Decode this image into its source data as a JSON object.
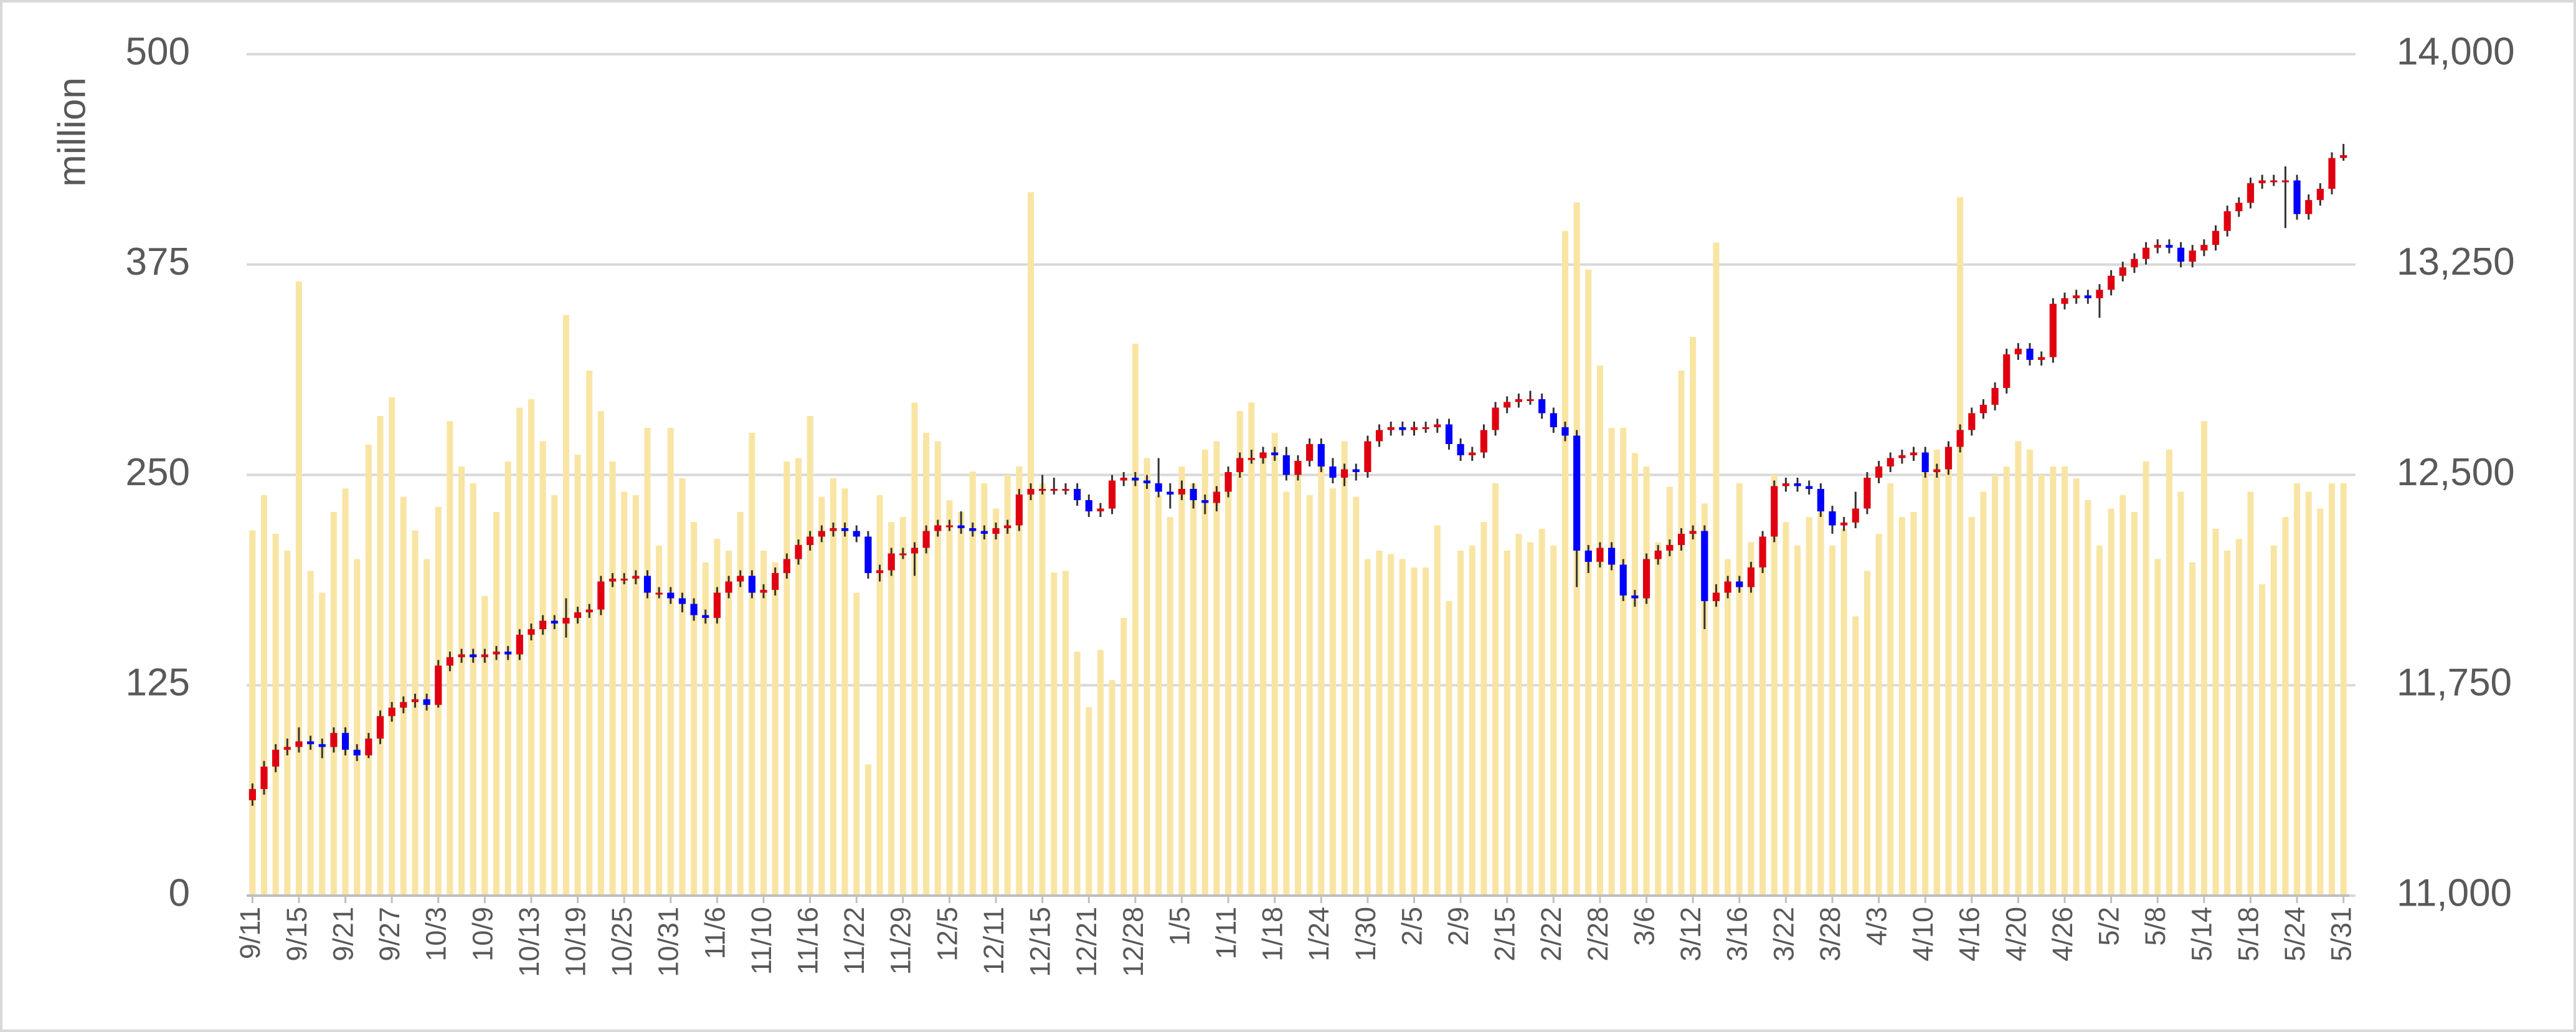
{
  "chart_data": {
    "type": "candlestick",
    "y_label": "million",
    "categories": [
      "9/11",
      null,
      null,
      null,
      "9/15",
      null,
      null,
      null,
      "9/21",
      null,
      null,
      null,
      "9/27",
      null,
      null,
      null,
      "10/3",
      null,
      null,
      null,
      "10/9",
      null,
      null,
      null,
      "10/13",
      null,
      null,
      null,
      "10/19",
      null,
      null,
      null,
      "10/25",
      null,
      null,
      null,
      "10/31",
      null,
      null,
      null,
      "11/6",
      null,
      null,
      null,
      "11/10",
      null,
      null,
      null,
      "11/16",
      null,
      null,
      null,
      "11/22",
      null,
      null,
      null,
      "11/29",
      null,
      null,
      null,
      "12/5",
      null,
      null,
      null,
      "12/11",
      null,
      null,
      null,
      "12/15",
      null,
      null,
      null,
      "12/21",
      null,
      null,
      null,
      "12/28",
      null,
      null,
      null,
      "1/5",
      null,
      null,
      null,
      "1/11",
      null,
      null,
      null,
      "1/18",
      null,
      null,
      null,
      "1/24",
      null,
      null,
      null,
      "1/30",
      null,
      null,
      null,
      "2/5",
      null,
      null,
      null,
      "2/9",
      null,
      null,
      null,
      "2/15",
      null,
      null,
      null,
      "2/22",
      null,
      null,
      null,
      "2/28",
      null,
      null,
      null,
      "3/6",
      null,
      null,
      null,
      "3/12",
      null,
      null,
      null,
      "3/16",
      null,
      null,
      null,
      "3/22",
      null,
      null,
      null,
      "3/28",
      null,
      null,
      null,
      "4/3",
      null,
      null,
      null,
      "4/10",
      null,
      null,
      null,
      "4/16",
      null,
      null,
      null,
      "4/20",
      null,
      null,
      null,
      "4/26",
      null,
      null,
      null,
      "5/2",
      null,
      null,
      null,
      "5/8",
      null,
      null,
      null,
      "5/14",
      null,
      null,
      null,
      "5/18",
      null,
      null,
      null,
      "5/24",
      null,
      null,
      null,
      "5/31"
    ],
    "volume": [
      217,
      238,
      215,
      205,
      365,
      193,
      180,
      228,
      242,
      200,
      268,
      285,
      296,
      237,
      217,
      200,
      231,
      282,
      255,
      245,
      178,
      228,
      258,
      290,
      295,
      270,
      238,
      345,
      262,
      312,
      288,
      258,
      240,
      238,
      278,
      208,
      278,
      248,
      222,
      198,
      212,
      205,
      228,
      275,
      205,
      198,
      258,
      260,
      285,
      237,
      248,
      242,
      180,
      78,
      238,
      222,
      225,
      293,
      275,
      270,
      235,
      228,
      252,
      245,
      230,
      250,
      255,
      418,
      245,
      192,
      193,
      145,
      112,
      146,
      128,
      165,
      328,
      260,
      238,
      225,
      255,
      245,
      265,
      270,
      248,
      288,
      293,
      262,
      275,
      240,
      250,
      238,
      255,
      242,
      270,
      237,
      200,
      205,
      203,
      200,
      195,
      195,
      220,
      175,
      205,
      208,
      222,
      245,
      205,
      215,
      210,
      218,
      208,
      395,
      412,
      372,
      315,
      278,
      278,
      263,
      255,
      210,
      243,
      312,
      332,
      233,
      388,
      200,
      245,
      210,
      213,
      250,
      222,
      208,
      225,
      240,
      208,
      218,
      166,
      193,
      215,
      245,
      225,
      228,
      260,
      265,
      265,
      415,
      225,
      240,
      250,
      255,
      270,
      265,
      250,
      255,
      255,
      248,
      235,
      208,
      230,
      238,
      228,
      258,
      200,
      265,
      240,
      198,
      282,
      218,
      205,
      212,
      240,
      185,
      208,
      225,
      245,
      240,
      230,
      245,
      245
    ],
    "open": [
      11340,
      11380,
      11460,
      11520,
      11530,
      11550,
      11540,
      11530,
      11580,
      11520,
      11500,
      11560,
      11640,
      11670,
      11690,
      11700,
      11680,
      11820,
      11850,
      11860,
      11850,
      11860,
      11870,
      11860,
      11930,
      11950,
      11980,
      11970,
      11990,
      12010,
      12020,
      12120,
      12130,
      12130,
      12140,
      12080,
      12080,
      12060,
      12040,
      12000,
      11990,
      12080,
      12120,
      12140,
      12080,
      12090,
      12150,
      12200,
      12250,
      12280,
      12300,
      12310,
      12300,
      12280,
      12150,
      12160,
      12220,
      12220,
      12240,
      12300,
      12320,
      12320,
      12310,
      12300,
      12290,
      12310,
      12320,
      12430,
      12450,
      12450,
      12450,
      12450,
      12410,
      12370,
      12380,
      12480,
      12490,
      12480,
      12470,
      12440,
      12430,
      12450,
      12410,
      12400,
      12440,
      12510,
      12560,
      12560,
      12580,
      12570,
      12500,
      12550,
      12610,
      12530,
      12490,
      12520,
      12510,
      12620,
      12660,
      12670,
      12660,
      12670,
      12670,
      12680,
      12610,
      12570,
      12580,
      12660,
      12740,
      12760,
      12770,
      12770,
      12720,
      12670,
      12640,
      12230,
      12190,
      12240,
      12180,
      12070,
      12060,
      12200,
      12230,
      12250,
      12290,
      12300,
      12050,
      12080,
      12120,
      12100,
      12170,
      12280,
      12460,
      12470,
      12460,
      12450,
      12370,
      12320,
      12330,
      12380,
      12490,
      12530,
      12560,
      12570,
      12580,
      12510,
      12520,
      12600,
      12660,
      12720,
      12750,
      12810,
      12930,
      12950,
      12910,
      12920,
      13110,
      13130,
      13140,
      13130,
      13160,
      13210,
      13240,
      13270,
      13310,
      13320,
      13310,
      13260,
      13300,
      13320,
      13370,
      13440,
      13470,
      13540,
      13550,
      13550,
      13550,
      13430,
      13480,
      13520,
      13630
    ],
    "high": [
      11400,
      11480,
      11540,
      11560,
      11600,
      11570,
      11560,
      11600,
      11600,
      11540,
      11580,
      11660,
      11690,
      11710,
      11720,
      11720,
      11840,
      11870,
      11880,
      11880,
      11880,
      11890,
      11890,
      11950,
      11970,
      12000,
      12000,
      12060,
      12030,
      12040,
      12140,
      12150,
      12150,
      12160,
      12160,
      12100,
      12100,
      12080,
      12060,
      12020,
      12100,
      12140,
      12160,
      12160,
      12110,
      12170,
      12220,
      12270,
      12300,
      12320,
      12330,
      12330,
      12320,
      12300,
      12180,
      12240,
      12240,
      12260,
      12320,
      12340,
      12340,
      12370,
      12330,
      12320,
      12330,
      12340,
      12450,
      12470,
      12500,
      12490,
      12470,
      12470,
      12430,
      12400,
      12500,
      12510,
      12510,
      12500,
      12560,
      12470,
      12480,
      12470,
      12430,
      12460,
      12530,
      12580,
      12590,
      12600,
      12600,
      12600,
      12570,
      12630,
      12630,
      12560,
      12540,
      12540,
      12640,
      12680,
      12690,
      12690,
      12690,
      12690,
      12700,
      12700,
      12630,
      12600,
      12680,
      12760,
      12780,
      12790,
      12800,
      12790,
      12740,
      12690,
      12660,
      12250,
      12260,
      12260,
      12200,
      12090,
      12220,
      12250,
      12270,
      12310,
      12320,
      12320,
      12110,
      12140,
      12140,
      12190,
      12300,
      12480,
      12490,
      12490,
      12480,
      12470,
      12390,
      12350,
      12440,
      12510,
      12550,
      12580,
      12590,
      12600,
      12600,
      12540,
      12620,
      12680,
      12740,
      12770,
      12830,
      12950,
      12970,
      12970,
      12940,
      13130,
      13150,
      13160,
      13160,
      13180,
      13230,
      13260,
      13290,
      13330,
      13340,
      13340,
      13330,
      13320,
      13340,
      13390,
      13460,
      13490,
      13560,
      13570,
      13570,
      13600,
      13570,
      13500,
      13540,
      13650,
      13680
    ],
    "low": [
      11320,
      11360,
      11440,
      11500,
      11510,
      11520,
      11490,
      11510,
      11500,
      11480,
      11490,
      11540,
      11620,
      11650,
      11670,
      11660,
      11670,
      11800,
      11830,
      11830,
      11830,
      11840,
      11840,
      11840,
      11910,
      11930,
      11950,
      11920,
      11970,
      11990,
      12000,
      12100,
      12110,
      12110,
      12060,
      12060,
      12040,
      12010,
      11980,
      11970,
      11970,
      12060,
      12100,
      12060,
      12060,
      12070,
      12130,
      12180,
      12230,
      12260,
      12280,
      12280,
      12260,
      12130,
      12120,
      12140,
      12200,
      12140,
      12220,
      12280,
      12300,
      12290,
      12280,
      12270,
      12270,
      12290,
      12300,
      12410,
      12430,
      12430,
      12430,
      12390,
      12350,
      12350,
      12360,
      12460,
      12460,
      12450,
      12420,
      12380,
      12410,
      12380,
      12360,
      12370,
      12420,
      12490,
      12540,
      12540,
      12550,
      12480,
      12480,
      12530,
      12510,
      12470,
      12460,
      12480,
      12490,
      12600,
      12640,
      12640,
      12640,
      12650,
      12650,
      12590,
      12550,
      12550,
      12560,
      12640,
      12720,
      12740,
      12750,
      12700,
      12650,
      12620,
      12100,
      12150,
      12170,
      12160,
      12050,
      12030,
      12040,
      12180,
      12210,
      12230,
      12270,
      11950,
      12030,
      12060,
      12080,
      12080,
      12150,
      12260,
      12440,
      12440,
      12430,
      12350,
      12290,
      12300,
      12310,
      12360,
      12470,
      12510,
      12540,
      12550,
      12490,
      12490,
      12500,
      12580,
      12640,
      12700,
      12730,
      12790,
      12910,
      12890,
      12890,
      12900,
      13090,
      13110,
      13110,
      13060,
      13140,
      13190,
      13220,
      13250,
      13290,
      13290,
      13240,
      13240,
      13280,
      13300,
      13350,
      13420,
      13450,
      13520,
      13530,
      13380,
      13410,
      13410,
      13460,
      13500,
      13620
    ],
    "close": [
      11380,
      11460,
      11520,
      11530,
      11550,
      11540,
      11530,
      11580,
      11520,
      11500,
      11560,
      11640,
      11670,
      11690,
      11700,
      11680,
      11820,
      11850,
      11860,
      11850,
      11860,
      11870,
      11860,
      11930,
      11950,
      11980,
      11970,
      11990,
      12010,
      12020,
      12120,
      12130,
      12130,
      12140,
      12080,
      12080,
      12060,
      12040,
      12000,
      11990,
      12080,
      12120,
      12140,
      12080,
      12090,
      12150,
      12200,
      12250,
      12280,
      12300,
      12310,
      12300,
      12280,
      12150,
      12160,
      12220,
      12220,
      12240,
      12300,
      12320,
      12320,
      12310,
      12300,
      12290,
      12310,
      12320,
      12430,
      12450,
      12450,
      12450,
      12450,
      12410,
      12370,
      12380,
      12480,
      12490,
      12480,
      12470,
      12440,
      12430,
      12450,
      12410,
      12400,
      12440,
      12510,
      12560,
      12560,
      12580,
      12570,
      12500,
      12550,
      12610,
      12530,
      12490,
      12520,
      12510,
      12620,
      12660,
      12670,
      12660,
      12670,
      12670,
      12680,
      12610,
      12570,
      12580,
      12660,
      12740,
      12760,
      12770,
      12770,
      12720,
      12670,
      12640,
      12230,
      12190,
      12240,
      12180,
      12070,
      12060,
      12200,
      12230,
      12250,
      12290,
      12300,
      12050,
      12080,
      12120,
      12100,
      12170,
      12280,
      12460,
      12470,
      12460,
      12450,
      12370,
      12320,
      12330,
      12380,
      12490,
      12530,
      12560,
      12570,
      12580,
      12510,
      12520,
      12600,
      12660,
      12720,
      12750,
      12810,
      12930,
      12950,
      12910,
      12920,
      13110,
      13130,
      13140,
      13130,
      13160,
      13210,
      13240,
      13270,
      13310,
      13320,
      13310,
      13260,
      13300,
      13320,
      13370,
      13440,
      13470,
      13540,
      13550,
      13550,
      13550,
      13430,
      13480,
      13520,
      13630,
      13640
    ],
    "ylim": [
      0,
      500
    ],
    "yticks": [
      0,
      125,
      250,
      375,
      500
    ],
    "y2lim": [
      11000,
      14000
    ],
    "y2ticks": [
      {
        "value": 11000,
        "label": "11,000"
      },
      {
        "value": 11750,
        "label": "11,750"
      },
      {
        "value": 12500,
        "label": "12,500"
      },
      {
        "value": 13250,
        "label": "13,250"
      },
      {
        "value": 14000,
        "label": "14,000"
      }
    ],
    "grid": true,
    "volume_color": "#f9e5a3",
    "up_color": "#e00010",
    "down_color": "#0000ff",
    "wick_color": "#333333"
  }
}
